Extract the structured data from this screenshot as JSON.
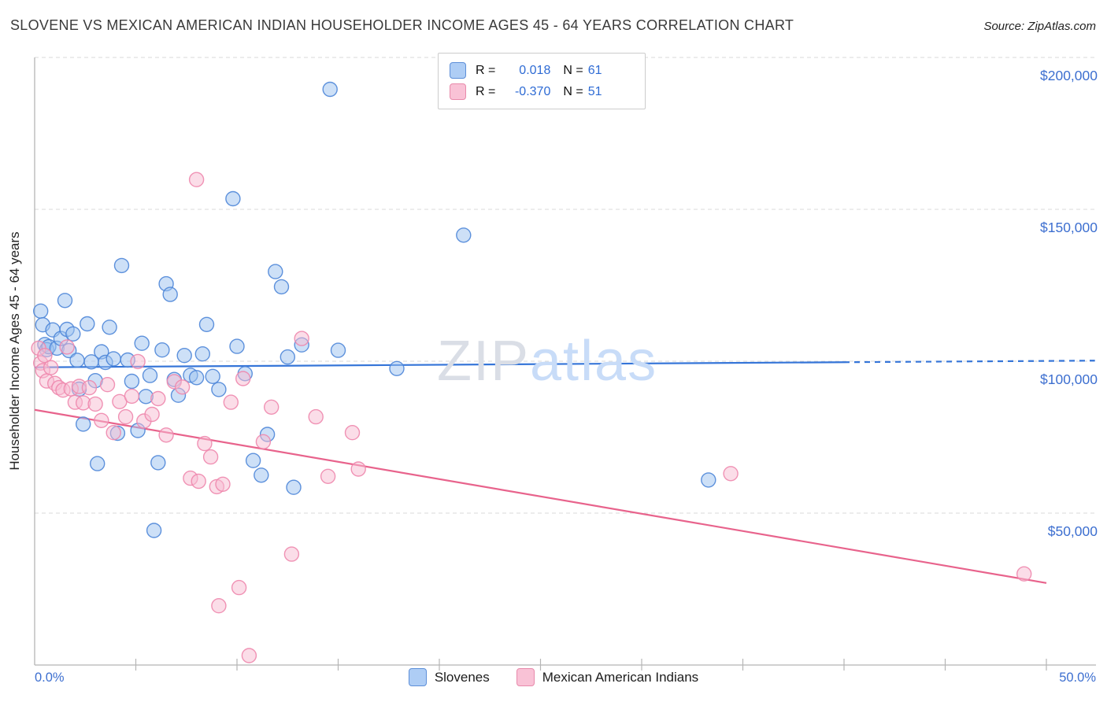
{
  "header": {
    "title": "SLOVENE VS MEXICAN AMERICAN INDIAN HOUSEHOLDER INCOME AGES 45 - 64 YEARS CORRELATION CHART",
    "source": "Source: ZipAtlas.com"
  },
  "watermark": {
    "part1": "ZIP",
    "part2": "atlas"
  },
  "legend_box": {
    "r_label": "R =",
    "n_label": "N =",
    "series": [
      {
        "r": "0.018",
        "n": "61"
      },
      {
        "r": "-0.370",
        "n": "51"
      }
    ]
  },
  "y_axis": {
    "label": "Householder Income Ages 45 - 64 years"
  },
  "x_axis": {
    "min_label": "0.0%",
    "max_label": "50.0%"
  },
  "bottom_legend": [
    {
      "label": "Slovenes"
    },
    {
      "label": "Mexican American Indians"
    }
  ],
  "colors": {
    "blue_fill": "#9cc1f0",
    "blue_stroke": "#4e86d8",
    "pink_fill": "#f8bcd2",
    "pink_stroke": "#ee87ad",
    "blue_line": "#3575d8",
    "pink_line": "#e8638c",
    "grid": "#d9d9d9",
    "axis": "#b5b5b5",
    "tick_label_blue": "#3d6fd0"
  },
  "chart_data": {
    "type": "scatter",
    "title": "SLOVENE VS MEXICAN AMERICAN INDIAN HOUSEHOLDER INCOME AGES 45 - 64 YEARS CORRELATION CHART",
    "xlabel": "",
    "ylabel": "Householder Income Ages 45 - 64 years",
    "x_unit": "percent",
    "y_unit": "USD",
    "xlim": [
      0,
      50
    ],
    "ylim": [
      0,
      200000
    ],
    "grid": "horizontal-dashed",
    "legend_position": "bottom-center",
    "y_ticks": [
      {
        "value": 200000,
        "label": "$200,000"
      },
      {
        "value": 150000,
        "label": "$150,000"
      },
      {
        "value": 100000,
        "label": "$100,000"
      },
      {
        "value": 50000,
        "label": "$50,000"
      }
    ],
    "x_tick_marks": [
      5,
      10,
      15,
      20,
      25,
      30,
      35,
      40,
      45,
      50
    ],
    "series": [
      {
        "name": "Slovenes",
        "R": 0.018,
        "N": 61,
        "points": [
          [
            0.3,
            116500
          ],
          [
            0.4,
            112000
          ],
          [
            0.5,
            105500
          ],
          [
            0.6,
            103800
          ],
          [
            0.7,
            104800
          ],
          [
            0.9,
            110300
          ],
          [
            1.1,
            104300
          ],
          [
            1.3,
            107500
          ],
          [
            1.5,
            120000
          ],
          [
            1.6,
            110500
          ],
          [
            1.7,
            103500
          ],
          [
            1.9,
            109000
          ],
          [
            2.1,
            100300
          ],
          [
            2.2,
            90800
          ],
          [
            2.4,
            79300
          ],
          [
            2.6,
            112300
          ],
          [
            2.8,
            99800
          ],
          [
            3.0,
            93600
          ],
          [
            3.1,
            66300
          ],
          [
            3.3,
            103100
          ],
          [
            3.5,
            99600
          ],
          [
            3.7,
            111200
          ],
          [
            3.9,
            100800
          ],
          [
            4.1,
            76300
          ],
          [
            4.3,
            131500
          ],
          [
            4.6,
            100400
          ],
          [
            4.8,
            93400
          ],
          [
            5.1,
            77200
          ],
          [
            5.3,
            105900
          ],
          [
            5.5,
            88400
          ],
          [
            5.7,
            95300
          ],
          [
            5.9,
            44300
          ],
          [
            6.1,
            66600
          ],
          [
            6.3,
            103700
          ],
          [
            6.5,
            125500
          ],
          [
            6.7,
            122000
          ],
          [
            6.9,
            94000
          ],
          [
            7.1,
            88800
          ],
          [
            7.4,
            101900
          ],
          [
            7.7,
            95400
          ],
          [
            8.0,
            94600
          ],
          [
            8.3,
            102400
          ],
          [
            8.5,
            112100
          ],
          [
            8.8,
            95000
          ],
          [
            9.1,
            90700
          ],
          [
            9.8,
            153500
          ],
          [
            10.0,
            104900
          ],
          [
            10.4,
            95900
          ],
          [
            10.8,
            67300
          ],
          [
            11.2,
            62500
          ],
          [
            11.5,
            75900
          ],
          [
            11.9,
            129500
          ],
          [
            12.2,
            124500
          ],
          [
            12.5,
            101400
          ],
          [
            12.8,
            58500
          ],
          [
            13.2,
            105400
          ],
          [
            14.6,
            189500
          ],
          [
            15.0,
            103600
          ],
          [
            17.9,
            97600
          ],
          [
            21.2,
            141500
          ],
          [
            33.3,
            60900
          ]
        ]
      },
      {
        "name": "Mexican American Indians",
        "R": -0.37,
        "N": 51,
        "points": [
          [
            0.2,
            104300
          ],
          [
            0.3,
            99400
          ],
          [
            0.4,
            96900
          ],
          [
            0.5,
            101900
          ],
          [
            0.6,
            93500
          ],
          [
            0.8,
            97900
          ],
          [
            1.0,
            92700
          ],
          [
            1.2,
            91300
          ],
          [
            1.4,
            90500
          ],
          [
            1.6,
            104700
          ],
          [
            1.8,
            90900
          ],
          [
            2.0,
            86500
          ],
          [
            2.2,
            91700
          ],
          [
            2.4,
            86300
          ],
          [
            2.7,
            91300
          ],
          [
            3.0,
            85900
          ],
          [
            3.3,
            80500
          ],
          [
            3.6,
            92300
          ],
          [
            3.9,
            76500
          ],
          [
            4.2,
            86700
          ],
          [
            4.5,
            81700
          ],
          [
            4.8,
            88500
          ],
          [
            5.1,
            99900
          ],
          [
            5.4,
            80300
          ],
          [
            5.8,
            82500
          ],
          [
            6.1,
            87700
          ],
          [
            6.5,
            75700
          ],
          [
            6.9,
            93300
          ],
          [
            7.3,
            91500
          ],
          [
            7.7,
            61500
          ],
          [
            8.0,
            159800
          ],
          [
            8.1,
            60500
          ],
          [
            8.4,
            72900
          ],
          [
            8.7,
            68500
          ],
          [
            9.0,
            58700
          ],
          [
            9.1,
            19500
          ],
          [
            9.3,
            59500
          ],
          [
            9.7,
            86500
          ],
          [
            10.1,
            25500
          ],
          [
            10.3,
            94300
          ],
          [
            10.6,
            3100
          ],
          [
            11.3,
            73500
          ],
          [
            11.7,
            84900
          ],
          [
            12.7,
            36500
          ],
          [
            13.2,
            107500
          ],
          [
            13.9,
            81700
          ],
          [
            14.5,
            62100
          ],
          [
            15.7,
            76500
          ],
          [
            16.0,
            64500
          ],
          [
            34.4,
            63000
          ],
          [
            48.9,
            30000
          ]
        ]
      }
    ],
    "trend_lines": [
      {
        "series": "Slovenes",
        "start": [
          0,
          98000
        ],
        "end": [
          52.4,
          100200
        ],
        "solid_until_x": 40
      },
      {
        "series": "Mexican American Indians",
        "start": [
          0,
          84000
        ],
        "end": [
          50,
          27000
        ],
        "solid_until_x": 50
      }
    ]
  }
}
